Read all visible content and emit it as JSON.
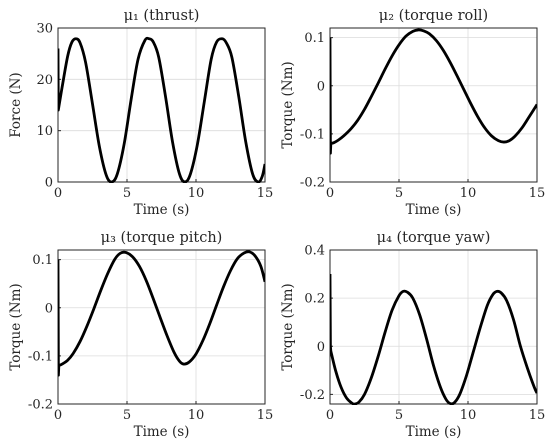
{
  "chart_data": [
    {
      "type": "line",
      "title": "μ₁ (thrust)",
      "xlabel": "Time (s)",
      "ylabel": "Force (N)",
      "xlim": [
        0,
        15
      ],
      "ylim": [
        0,
        30
      ],
      "xticks": [
        "0",
        "5",
        "10",
        "15"
      ],
      "yticks": [
        "0",
        "10",
        "20",
        "30"
      ],
      "grid": true,
      "series": [
        {
          "x": [
            0,
            0.02,
            0.3,
            0.7,
            1.0,
            1.3,
            1.6,
            2.0,
            2.5,
            3.0,
            3.5,
            3.9,
            4.3,
            4.8,
            5.3,
            5.8,
            6.3,
            6.6,
            6.9,
            7.3,
            7.8,
            8.3,
            8.8,
            9.2,
            9.6,
            10.1,
            10.6,
            11.1,
            11.5,
            11.9,
            12.2,
            12.6,
            13.1,
            13.6,
            14.1,
            14.5,
            14.8,
            15.0
          ],
          "y": [
            26,
            14,
            18.5,
            24.5,
            27.2,
            27.9,
            27.1,
            23.3,
            15.2,
            6.9,
            1.3,
            0,
            1.6,
            7.5,
            16.1,
            23.9,
            27.6,
            27.9,
            27.3,
            24.3,
            16.5,
            7.8,
            1.6,
            0,
            1.6,
            7.3,
            15.6,
            23.9,
            27.3,
            27.9,
            27.1,
            24.3,
            16.6,
            7.9,
            1.6,
            0,
            1.1,
            3.5
          ]
        }
      ]
    },
    {
      "type": "line",
      "title": "μ₂ (torque roll)",
      "xlabel": "Time (s)",
      "ylabel": "Torque (Nm)",
      "xlim": [
        0,
        15
      ],
      "ylim": [
        -0.2,
        0.12
      ],
      "xticks": [
        "0",
        "5",
        "10",
        "15"
      ],
      "yticks": [
        "-0.2",
        "-0.1",
        "0",
        "0.1"
      ],
      "grid": true,
      "series": [
        {
          "x": [
            0,
            0.03,
            0.06,
            0.3,
            0.6,
            1.0,
            1.5,
            2.0,
            2.5,
            3.0,
            3.5,
            4.0,
            4.5,
            5.0,
            5.5,
            6.0,
            6.4,
            6.8,
            7.2,
            7.7,
            8.2,
            8.7,
            9.2,
            9.7,
            10.2,
            10.7,
            11.2,
            11.7,
            12.2,
            12.6,
            13.0,
            13.4,
            13.9,
            14.4,
            15.0
          ],
          "y": [
            0.1,
            -0.14,
            -0.12,
            -0.118,
            -0.113,
            -0.104,
            -0.09,
            -0.072,
            -0.049,
            -0.022,
            0.006,
            0.035,
            0.062,
            0.085,
            0.103,
            0.113,
            0.116,
            0.114,
            0.108,
            0.094,
            0.074,
            0.049,
            0.021,
            -0.008,
            -0.037,
            -0.064,
            -0.087,
            -0.104,
            -0.114,
            -0.117,
            -0.114,
            -0.105,
            -0.088,
            -0.066,
            -0.039
          ]
        }
      ]
    },
    {
      "type": "line",
      "title": "μ₃ (torque pitch)",
      "xlabel": "Time (s)",
      "ylabel": "Torque (Nm)",
      "xlim": [
        0,
        15
      ],
      "ylim": [
        -0.2,
        0.12
      ],
      "xticks": [
        "0",
        "5",
        "10",
        "15"
      ],
      "yticks": [
        "-0.2",
        "-0.1",
        "0",
        "0.1"
      ],
      "grid": true,
      "series": [
        {
          "x": [
            0,
            0.03,
            0.06,
            0.3,
            0.7,
            1.1,
            1.6,
            2.1,
            2.6,
            3.1,
            3.6,
            4.1,
            4.5,
            4.9,
            5.4,
            5.9,
            6.4,
            6.9,
            7.4,
            7.9,
            8.4,
            8.8,
            9.1,
            9.5,
            10.0,
            10.5,
            11.0,
            11.5,
            12.0,
            12.5,
            13.0,
            13.5,
            13.9,
            14.3,
            14.7,
            15.0
          ],
          "y": [
            0.1,
            -0.14,
            -0.12,
            -0.117,
            -0.109,
            -0.095,
            -0.07,
            -0.038,
            -0.002,
            0.036,
            0.071,
            0.1,
            0.113,
            0.115,
            0.106,
            0.086,
            0.056,
            0.019,
            -0.02,
            -0.058,
            -0.092,
            -0.111,
            -0.117,
            -0.113,
            -0.096,
            -0.068,
            -0.033,
            0.006,
            0.044,
            0.077,
            0.102,
            0.114,
            0.116,
            0.107,
            0.086,
            0.054
          ]
        }
      ]
    },
    {
      "type": "line",
      "title": "μ₄ (torque yaw)",
      "xlabel": "Time (s)",
      "ylabel": "Torque (Nm)",
      "xlim": [
        0,
        15
      ],
      "ylim": [
        -0.24,
        0.4
      ],
      "xticks": [
        "0",
        "5",
        "10",
        "15"
      ],
      "yticks": [
        "-0.2",
        "0",
        "0.2",
        "0.4"
      ],
      "grid": true,
      "series": [
        {
          "x": [
            0,
            0.03,
            0.06,
            0.4,
            0.8,
            1.2,
            1.6,
            1.8,
            2.1,
            2.5,
            3.0,
            3.5,
            4.0,
            4.5,
            5.0,
            5.3,
            5.6,
            6.0,
            6.5,
            7.0,
            7.5,
            8.0,
            8.4,
            8.7,
            9.0,
            9.4,
            9.9,
            10.4,
            10.9,
            11.4,
            11.8,
            12.1,
            12.4,
            12.8,
            13.3,
            13.8,
            14.3,
            14.8,
            15.0
          ],
          "y": [
            0.3,
            0.0,
            -0.02,
            -0.1,
            -0.17,
            -0.215,
            -0.237,
            -0.24,
            -0.232,
            -0.2,
            -0.13,
            -0.04,
            0.06,
            0.15,
            0.21,
            0.228,
            0.225,
            0.2,
            0.13,
            0.03,
            -0.08,
            -0.17,
            -0.22,
            -0.238,
            -0.235,
            -0.2,
            -0.12,
            -0.02,
            0.08,
            0.17,
            0.215,
            0.228,
            0.222,
            0.19,
            0.11,
            0.0,
            -0.09,
            -0.17,
            -0.195
          ]
        }
      ]
    }
  ]
}
